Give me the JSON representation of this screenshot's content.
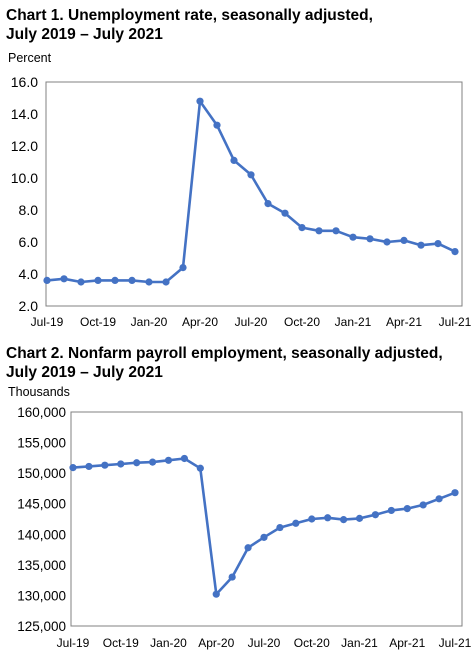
{
  "chart_data": [
    {
      "type": "line",
      "title_line1": "Chart 1. Unemployment rate, seasonally adjusted,",
      "title_line2": "July 2019 – July 2021",
      "ylabel": "Percent",
      "xlabel": "",
      "ylim": [
        2.0,
        16.0
      ],
      "yticks": [
        "16.0",
        "14.0",
        "12.0",
        "10.0",
        "8.0",
        "6.0",
        "4.0",
        "2.0"
      ],
      "ytick_values": [
        16,
        14,
        12,
        10,
        8,
        6,
        4,
        2
      ],
      "xticks": [
        "Jul-19",
        "Oct-19",
        "Jan-20",
        "Apr-20",
        "Jul-20",
        "Oct-20",
        "Jan-21",
        "Apr-21",
        "Jul-21"
      ],
      "xtick_index": [
        0,
        3,
        6,
        9,
        12,
        15,
        18,
        21,
        24
      ],
      "grid": false,
      "line_color": "#4472C4",
      "x": [
        "Jul-19",
        "Aug-19",
        "Sep-19",
        "Oct-19",
        "Nov-19",
        "Dec-19",
        "Jan-20",
        "Feb-20",
        "Mar-20",
        "Apr-20",
        "May-20",
        "Jun-20",
        "Jul-20",
        "Aug-20",
        "Sep-20",
        "Oct-20",
        "Nov-20",
        "Dec-20",
        "Jan-21",
        "Feb-21",
        "Mar-21",
        "Apr-21",
        "May-21",
        "Jun-21",
        "Jul-21"
      ],
      "values": [
        3.6,
        3.7,
        3.5,
        3.6,
        3.6,
        3.6,
        3.5,
        3.5,
        4.4,
        14.8,
        13.3,
        11.1,
        10.2,
        8.4,
        7.8,
        6.9,
        6.7,
        6.7,
        6.3,
        6.2,
        6.0,
        6.1,
        5.8,
        5.9,
        5.4
      ]
    },
    {
      "type": "line",
      "title_line1": "Chart 2. Nonfarm payroll employment, seasonally adjusted,",
      "title_line2": "July 2019 – July 2021",
      "ylabel": "Thousands",
      "xlabel": "",
      "ylim": [
        125000,
        160000
      ],
      "yticks": [
        "160,000",
        "155,000",
        "150,000",
        "145,000",
        "140,000",
        "135,000",
        "130,000",
        "125,000"
      ],
      "ytick_values": [
        160000,
        155000,
        150000,
        145000,
        140000,
        135000,
        130000,
        125000
      ],
      "xticks": [
        "Jul-19",
        "Oct-19",
        "Jan-20",
        "Apr-20",
        "Jul-20",
        "Oct-20",
        "Jan-21",
        "Apr-21",
        "Jul-21"
      ],
      "xtick_index": [
        0,
        3,
        6,
        9,
        12,
        15,
        18,
        21,
        24
      ],
      "grid": false,
      "line_color": "#4472C4",
      "x": [
        "Jul-19",
        "Aug-19",
        "Sep-19",
        "Oct-19",
        "Nov-19",
        "Dec-19",
        "Jan-20",
        "Feb-20",
        "Mar-20",
        "Apr-20",
        "May-20",
        "Jun-20",
        "Jul-20",
        "Aug-20",
        "Sep-20",
        "Oct-20",
        "Nov-20",
        "Dec-20",
        "Jan-21",
        "Feb-21",
        "Mar-21",
        "Apr-21",
        "May-21",
        "Jun-21",
        "Jul-21"
      ],
      "values": [
        150900,
        151100,
        151300,
        151500,
        151700,
        151800,
        152100,
        152400,
        150800,
        130200,
        133000,
        137800,
        139500,
        141100,
        141800,
        142500,
        142700,
        142400,
        142600,
        143200,
        143900,
        144200,
        144800,
        145800,
        146800
      ]
    }
  ]
}
